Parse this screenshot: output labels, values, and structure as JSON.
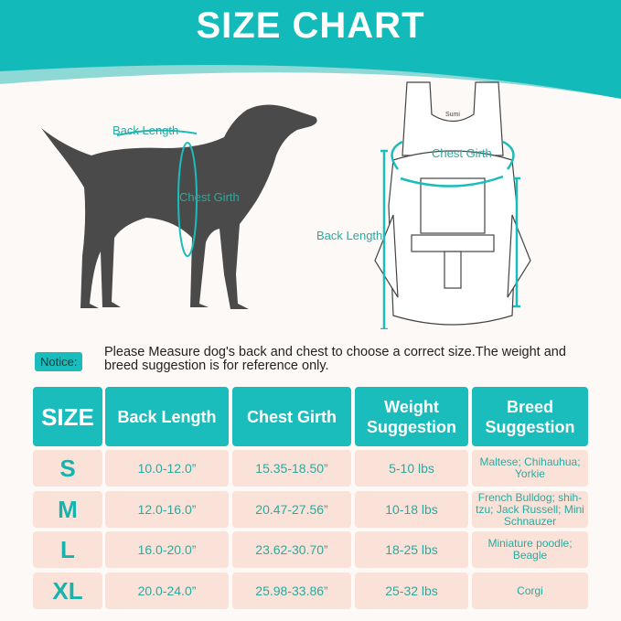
{
  "title": "SIZE CHART",
  "colors": {
    "accent": "#1bbcbc",
    "row_bg": "#fbe2d8",
    "text_teal": "#2aa9a0"
  },
  "diagram": {
    "dog": {
      "back_length": "Back Length",
      "chest_girth": "Chest Girth"
    },
    "backpack": {
      "chest_girth": "Chest Girth",
      "back_length": "Back Length",
      "logo": "Sumi"
    }
  },
  "notice": {
    "label": "Notice:",
    "text": "Please Measure dog's back and chest to choose a correct size.The weight and breed suggestion is for reference only."
  },
  "table": {
    "headers": [
      "SIZE",
      "Back Length",
      "Chest Girth",
      "Weight Suggestion",
      "Breed Suggestion"
    ],
    "rows": [
      [
        "S",
        "10.0-12.0”",
        "15.35-18.50”",
        "5-10 lbs",
        "Maltese; Chihauhua; Yorkie"
      ],
      [
        "M",
        "12.0-16.0”",
        "20.47-27.56”",
        "10-18 lbs",
        "French Bulldog; shih-tzu; Jack Russell; Mini Schnauzer"
      ],
      [
        "L",
        "16.0-20.0”",
        "23.62-30.70”",
        "18-25 lbs",
        "Miniature poodle; Beagle"
      ],
      [
        "XL",
        "20.0-24.0”",
        "25.98-33.86”",
        "25-32 lbs",
        "Corgi"
      ]
    ]
  }
}
